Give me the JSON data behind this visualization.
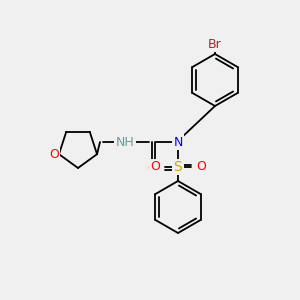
{
  "background_color": "#f0f0f0",
  "bond_color": "#000000",
  "atom_colors": {
    "Br": "#a52a2a",
    "O": "#ff0000",
    "N_nh": "#5f9ea0",
    "N": "#0000ff",
    "S": "#ccaa00",
    "H": "#5f9ea0"
  },
  "figsize": [
    3.0,
    3.0
  ],
  "dpi": 100,
  "lw": 1.3,
  "lw_double": 1.3
}
